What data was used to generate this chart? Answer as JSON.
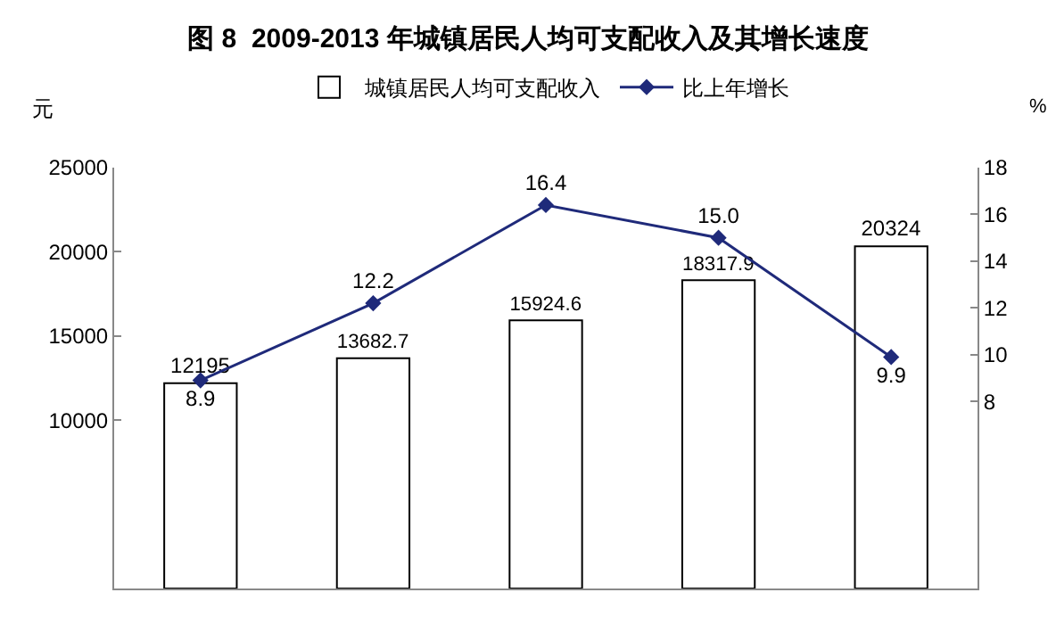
{
  "chart_data": {
    "type": "bar",
    "title": "图 8  2009-2013 年城镇居民人均可支配收入及其增长速度",
    "ylabel": "元",
    "y2label": "%",
    "categories": [
      null,
      null,
      null,
      null,
      null
    ],
    "series": [
      {
        "name": "城镇居民人均可支配收入",
        "color": "#ffffff",
        "values": [
          12195,
          13682.7,
          15924.6,
          18317.9,
          20324
        ],
        "value_labels": [
          "12195",
          "13682.7",
          "15924.6",
          "18317.9",
          "20324"
        ]
      },
      {
        "name": "比上年增长",
        "type": "line",
        "axis": "y2",
        "color": "#1f2a7a",
        "marker": "diamond",
        "values": [
          8.9,
          12.2,
          16.4,
          15.0,
          9.9
        ],
        "value_labels": [
          "8.9",
          "12.2",
          "16.4",
          "15.0",
          "9.9"
        ]
      }
    ],
    "ylim": [
      0,
      25000
    ],
    "yticks": [
      10000,
      15000,
      20000,
      25000
    ],
    "y2lim": [
      0,
      18
    ],
    "y2ticks": [
      8,
      10,
      12,
      14,
      16,
      18
    ],
    "grid": false,
    "legend": "top"
  }
}
